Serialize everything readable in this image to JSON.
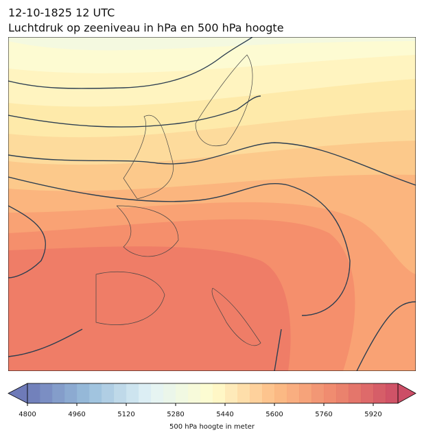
{
  "header": {
    "title_line1": "12-10-1825 12 UTC",
    "title_line2": "Luchtdruk op zeeniveau in hPa en 500 hPa hoogte"
  },
  "colorbar": {
    "label": "500 hPa hoogte in meter",
    "range": [
      4800,
      6000
    ],
    "step": 40,
    "ticks": [
      4800,
      4960,
      5120,
      5280,
      5440,
      5600,
      5760,
      5920
    ],
    "colors": [
      "#5e6bb0",
      "#8fb8d8",
      "#e0f2f6",
      "#fffdc8",
      "#fdb77a",
      "#ec7a5e",
      "#c73a55"
    ]
  }
}
